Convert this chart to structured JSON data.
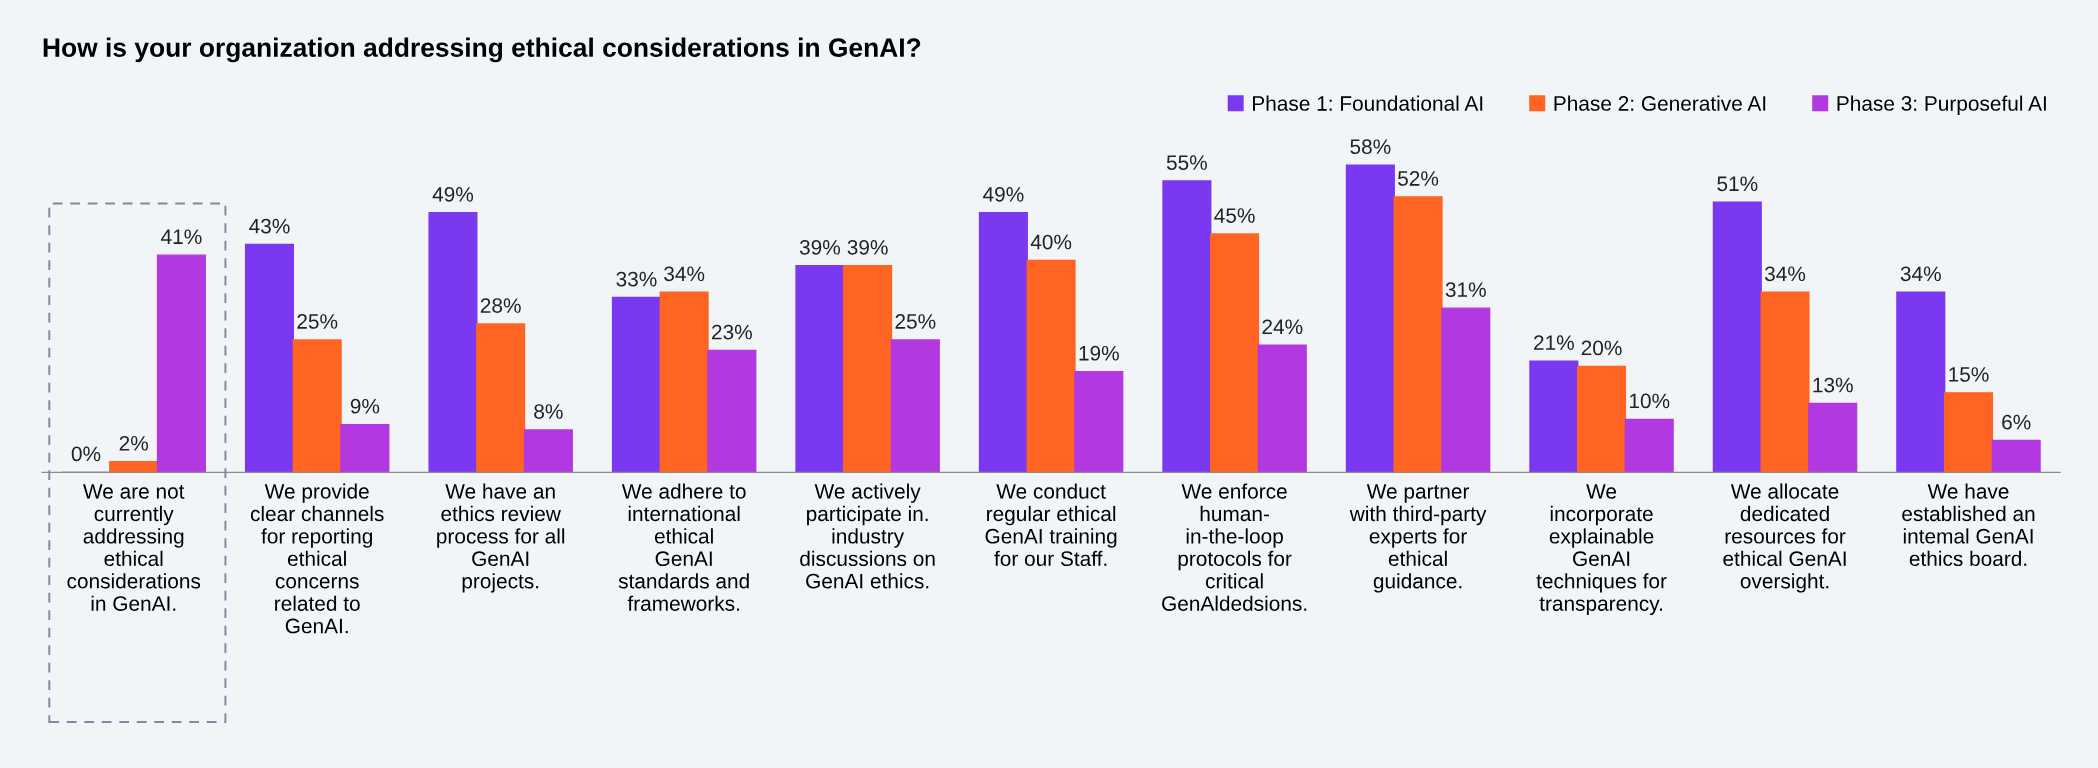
{
  "chart_data": {
    "type": "bar",
    "title": "How is your organization addressing ethical considerations in GenAI?",
    "categories": [
      "We are not\ncurrently\naddressing\nethical\nconsiderations\nin GenAI.",
      "We provide\nclear channels\nfor reporting\nethical\nconcerns\nrelated to\nGenAI.",
      "We have an\nethics review\nprocess for all\nGenAI\nprojects.",
      "We adhere to\ninternational\nethical\nGenAI\nstandards and\nframeworks.",
      "We actively\nparticipate in.\nindustry\ndiscussions on\nGenAI ethics.",
      "We conduct\nregular ethical\nGenAI training\nfor our Staff.",
      "We enforce\nhuman-\nin-the-loop\nprotocols for\ncritical\nGenAldedsions.",
      "We partner\nwith third-party\nexperts for\nethical\nguidance.",
      "We\nincorporate\nexplainable\nGenAI\ntechniques for\ntransparency.",
      "We allocate\ndedicated\nresources for\nethical GenAI\noversight.",
      "We have\nestablished an\nintemal GenAI\nethics board."
    ],
    "series": [
      {
        "name": "Phase 1: Foundational AI",
        "color": "#7a38f0",
        "values": [
          0,
          43,
          49,
          33,
          39,
          49,
          55,
          58,
          21,
          51,
          34
        ],
        "value_labels": [
          "0%",
          "43%",
          "49%",
          "33%",
          "39%",
          "49%",
          "55%",
          "58%",
          "21%",
          "51%",
          "34%"
        ]
      },
      {
        "name": "Phase 2: Generative AI",
        "color": "#ff6422",
        "values": [
          2,
          25,
          28,
          34,
          39,
          40,
          45,
          52,
          20,
          34,
          15
        ],
        "value_labels": [
          "2%",
          "25%",
          "28%",
          "34%",
          "39%",
          "40%",
          "45%",
          "52%",
          "20%",
          "34%",
          "15%"
        ]
      },
      {
        "name": "Phase 3: Purposeful AI",
        "color": "#b238e2",
        "values": [
          41,
          9,
          8,
          23,
          25,
          19,
          24,
          31,
          10,
          13,
          6
        ],
        "value_labels": [
          "41%",
          "9%",
          "8%",
          "23%",
          "25%",
          "19%",
          "24%",
          "31%",
          "10%",
          "13%",
          "6%"
        ]
      }
    ],
    "legend": "top right",
    "grid": false,
    "tick_labels": "x"
  }
}
